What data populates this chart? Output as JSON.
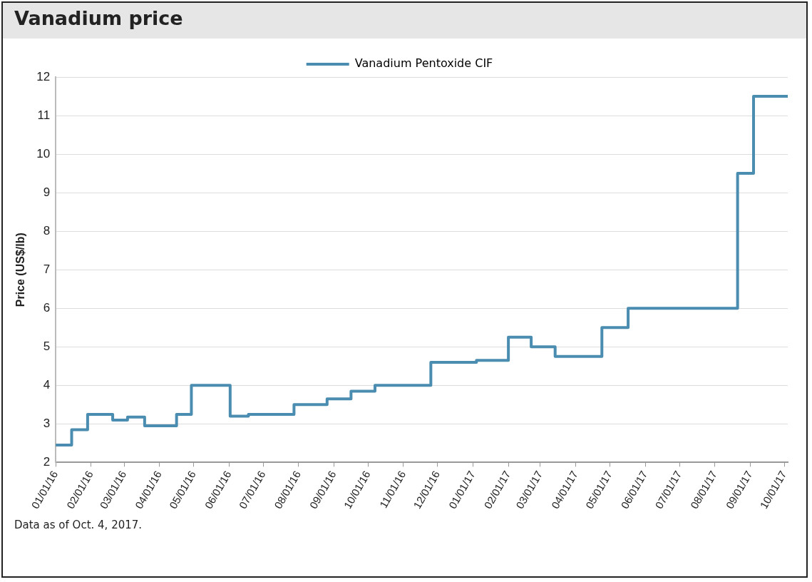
{
  "chart_data": {
    "type": "step",
    "title": "Vanadium price",
    "ylabel": "Price (US$/lb)",
    "x": [
      "2016-01-01",
      "2016-01-15",
      "2016-01-29",
      "2016-02-20",
      "2016-03-04",
      "2016-03-19",
      "2016-04-16",
      "2016-04-29",
      "2016-06-02",
      "2016-06-18",
      "2016-07-28",
      "2016-08-26",
      "2016-09-16",
      "2016-10-07",
      "2016-11-25",
      "2017-01-04",
      "2017-02-01",
      "2017-02-21",
      "2017-03-14",
      "2017-04-24",
      "2017-05-17",
      "2017-08-21",
      "2017-09-04",
      "2017-10-04"
    ],
    "series": [
      {
        "name": "Vanadium Pentoxide CIF",
        "color": "#4a8db0",
        "values": [
          2.45,
          2.85,
          3.25,
          3.1,
          3.18,
          2.95,
          3.25,
          4.0,
          3.2,
          3.25,
          3.5,
          3.65,
          3.85,
          4.0,
          4.6,
          4.65,
          5.25,
          5.0,
          4.75,
          5.5,
          6.0,
          9.5,
          11.5,
          11.5
        ]
      }
    ],
    "xlim": [
      "2016-01-01",
      "2017-10-04"
    ],
    "xticks": [
      {
        "value": "2016-01-01",
        "label": "01/01/16"
      },
      {
        "value": "2016-02-01",
        "label": "02/01/16"
      },
      {
        "value": "2016-03-01",
        "label": "03/01/16"
      },
      {
        "value": "2016-04-01",
        "label": "04/01/16"
      },
      {
        "value": "2016-05-01",
        "label": "05/01/16"
      },
      {
        "value": "2016-06-01",
        "label": "06/01/16"
      },
      {
        "value": "2016-07-01",
        "label": "07/01/16"
      },
      {
        "value": "2016-08-01",
        "label": "08/01/16"
      },
      {
        "value": "2016-09-01",
        "label": "09/01/16"
      },
      {
        "value": "2016-10-01",
        "label": "10/01/16"
      },
      {
        "value": "2016-11-01",
        "label": "11/01/16"
      },
      {
        "value": "2016-12-01",
        "label": "12/01/16"
      },
      {
        "value": "2017-01-01",
        "label": "01/01/17"
      },
      {
        "value": "2017-02-01",
        "label": "02/01/17"
      },
      {
        "value": "2017-03-01",
        "label": "03/01/17"
      },
      {
        "value": "2017-04-01",
        "label": "04/01/17"
      },
      {
        "value": "2017-05-01",
        "label": "05/01/17"
      },
      {
        "value": "2017-06-01",
        "label": "06/01/17"
      },
      {
        "value": "2017-07-01",
        "label": "07/01/17"
      },
      {
        "value": "2017-08-01",
        "label": "08/01/17"
      },
      {
        "value": "2017-09-01",
        "label": "09/01/17"
      },
      {
        "value": "2017-10-01",
        "label": "10/01/17"
      }
    ],
    "ylim": [
      2,
      12
    ],
    "yticks": [
      2,
      3,
      4,
      5,
      6,
      7,
      8,
      9,
      10,
      11,
      12
    ],
    "grid": "y",
    "legend": "top",
    "annotations": [
      "Data as of Oct. 4, 2017."
    ]
  }
}
